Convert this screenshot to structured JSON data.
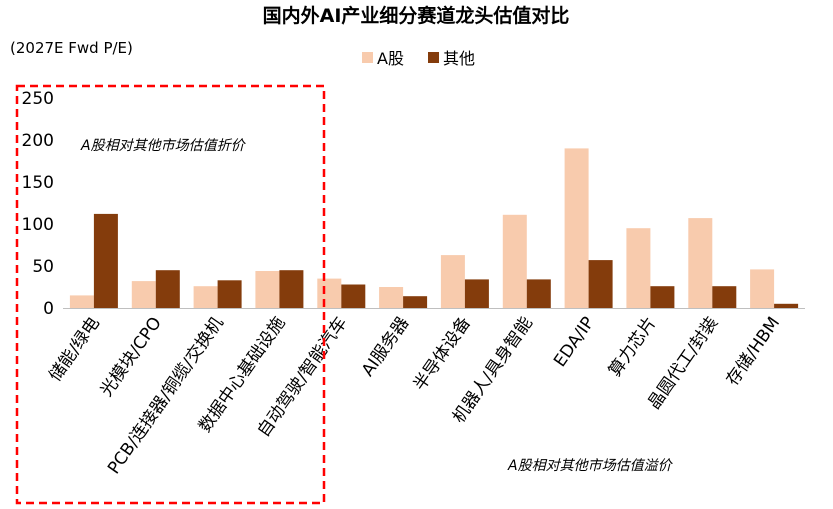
{
  "chart_data": {
    "type": "bar",
    "title": "国内外AI产业细分赛道龙头估值对比",
    "unit_label": "(2027E Fwd P/E)",
    "categories": [
      "储能/绿电",
      "光模块/CPO",
      "PCB/连接器/铜缆/交换机",
      "数据中心基础设施",
      "自动驾驶/智能汽车",
      "AI服务器",
      "半导体设备",
      "机器人/具身智能",
      "EDA/IP",
      "算力芯片",
      "晶圆代工/封装",
      "存储/HBM"
    ],
    "series": [
      {
        "name": "A股",
        "color": "#F8CBAD",
        "values": [
          15,
          32,
          26,
          44,
          35,
          25,
          63,
          111,
          190,
          95,
          107,
          46
        ]
      },
      {
        "name": "其他",
        "color": "#843C0C",
        "values": [
          112,
          45,
          33,
          45,
          28,
          14,
          34,
          34,
          57,
          26,
          26,
          5
        ]
      }
    ],
    "ylim": [
      0,
      250
    ],
    "yticks": [
      0,
      50,
      100,
      150,
      200,
      250
    ],
    "grid": false,
    "legend_position": "top-center",
    "annotations": {
      "discount": "A股相对其他市场估值折价",
      "premium": "A股相对其他市场估值溢价"
    },
    "highlight_box_color": "#FF0000"
  }
}
